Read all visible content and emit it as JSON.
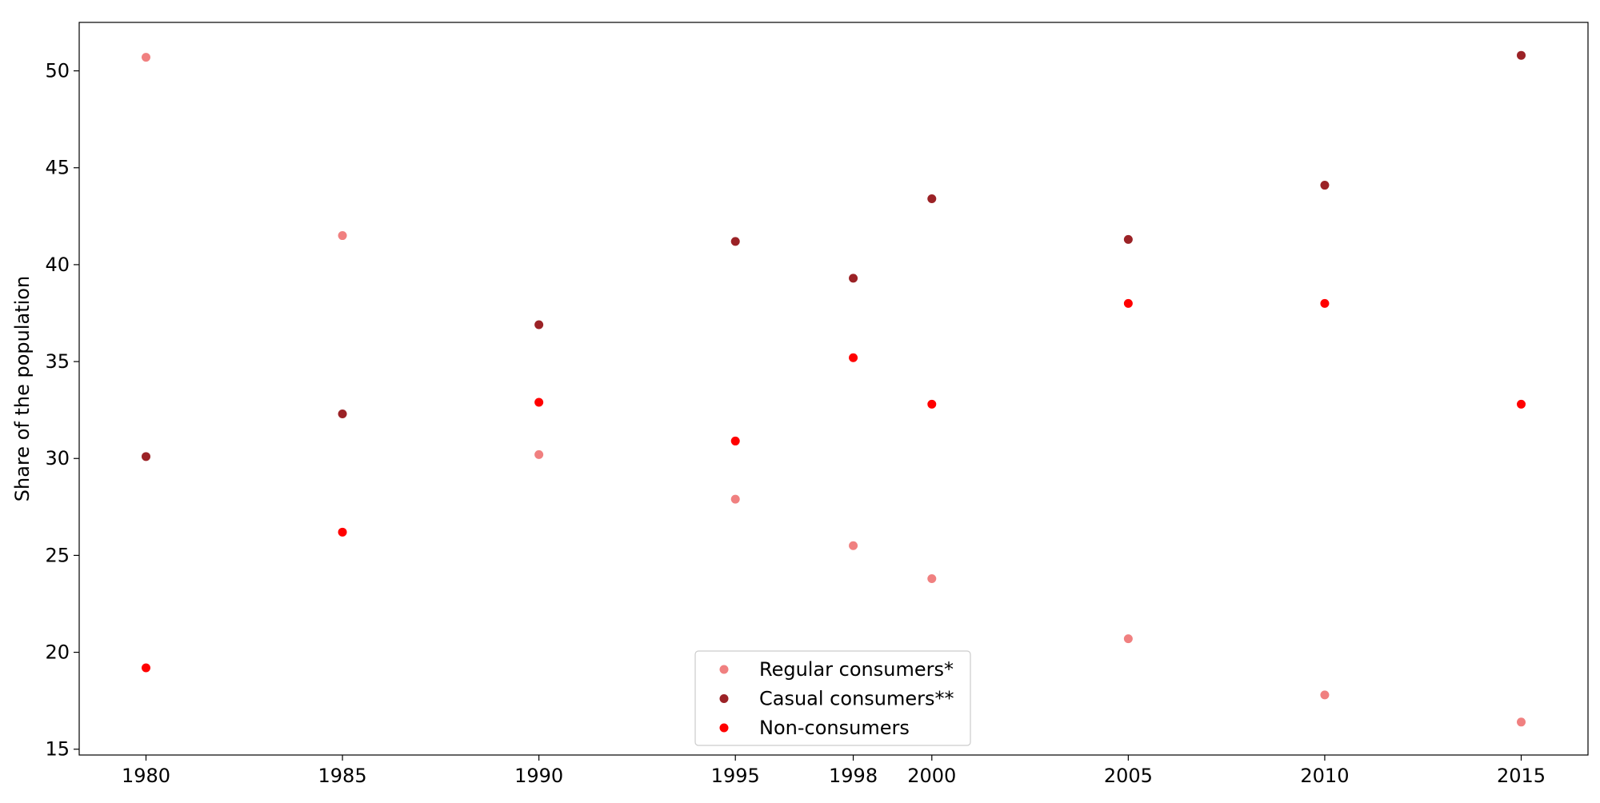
{
  "chart_data": {
    "type": "scatter",
    "title": "",
    "xlabel": "",
    "ylabel": "Share of the population",
    "x_ticks": [
      1980,
      1985,
      1990,
      1995,
      1998,
      2000,
      2005,
      2010,
      2015
    ],
    "x_range": [
      1978.3,
      2016.7
    ],
    "y_ticks": [
      15,
      20,
      25,
      30,
      35,
      40,
      45,
      50
    ],
    "y_range": [
      14.7,
      52.5
    ],
    "grid": false,
    "legend_position": "bottom-center",
    "series": [
      {
        "name": "Regular consumers*",
        "color": "#f08080",
        "x": [
          1980,
          1985,
          1990,
          1995,
          1998,
          2000,
          2005,
          2010,
          2015
        ],
        "y": [
          50.7,
          41.5,
          30.2,
          27.9,
          25.5,
          23.8,
          20.7,
          17.8,
          16.4
        ]
      },
      {
        "name": "Casual consumers**",
        "color": "#9b2226",
        "x": [
          1980,
          1985,
          1990,
          1995,
          1998,
          2000,
          2005,
          2010,
          2015
        ],
        "y": [
          30.1,
          32.3,
          36.9,
          41.2,
          39.3,
          43.4,
          41.3,
          44.1,
          50.8
        ]
      },
      {
        "name": "Non-consumers",
        "color": "#ff0000",
        "x": [
          1980,
          1985,
          1990,
          1995,
          1998,
          2000,
          2005,
          2010,
          2015
        ],
        "y": [
          19.2,
          26.2,
          32.9,
          30.9,
          35.2,
          32.8,
          38.0,
          38.0,
          32.8
        ]
      }
    ]
  }
}
